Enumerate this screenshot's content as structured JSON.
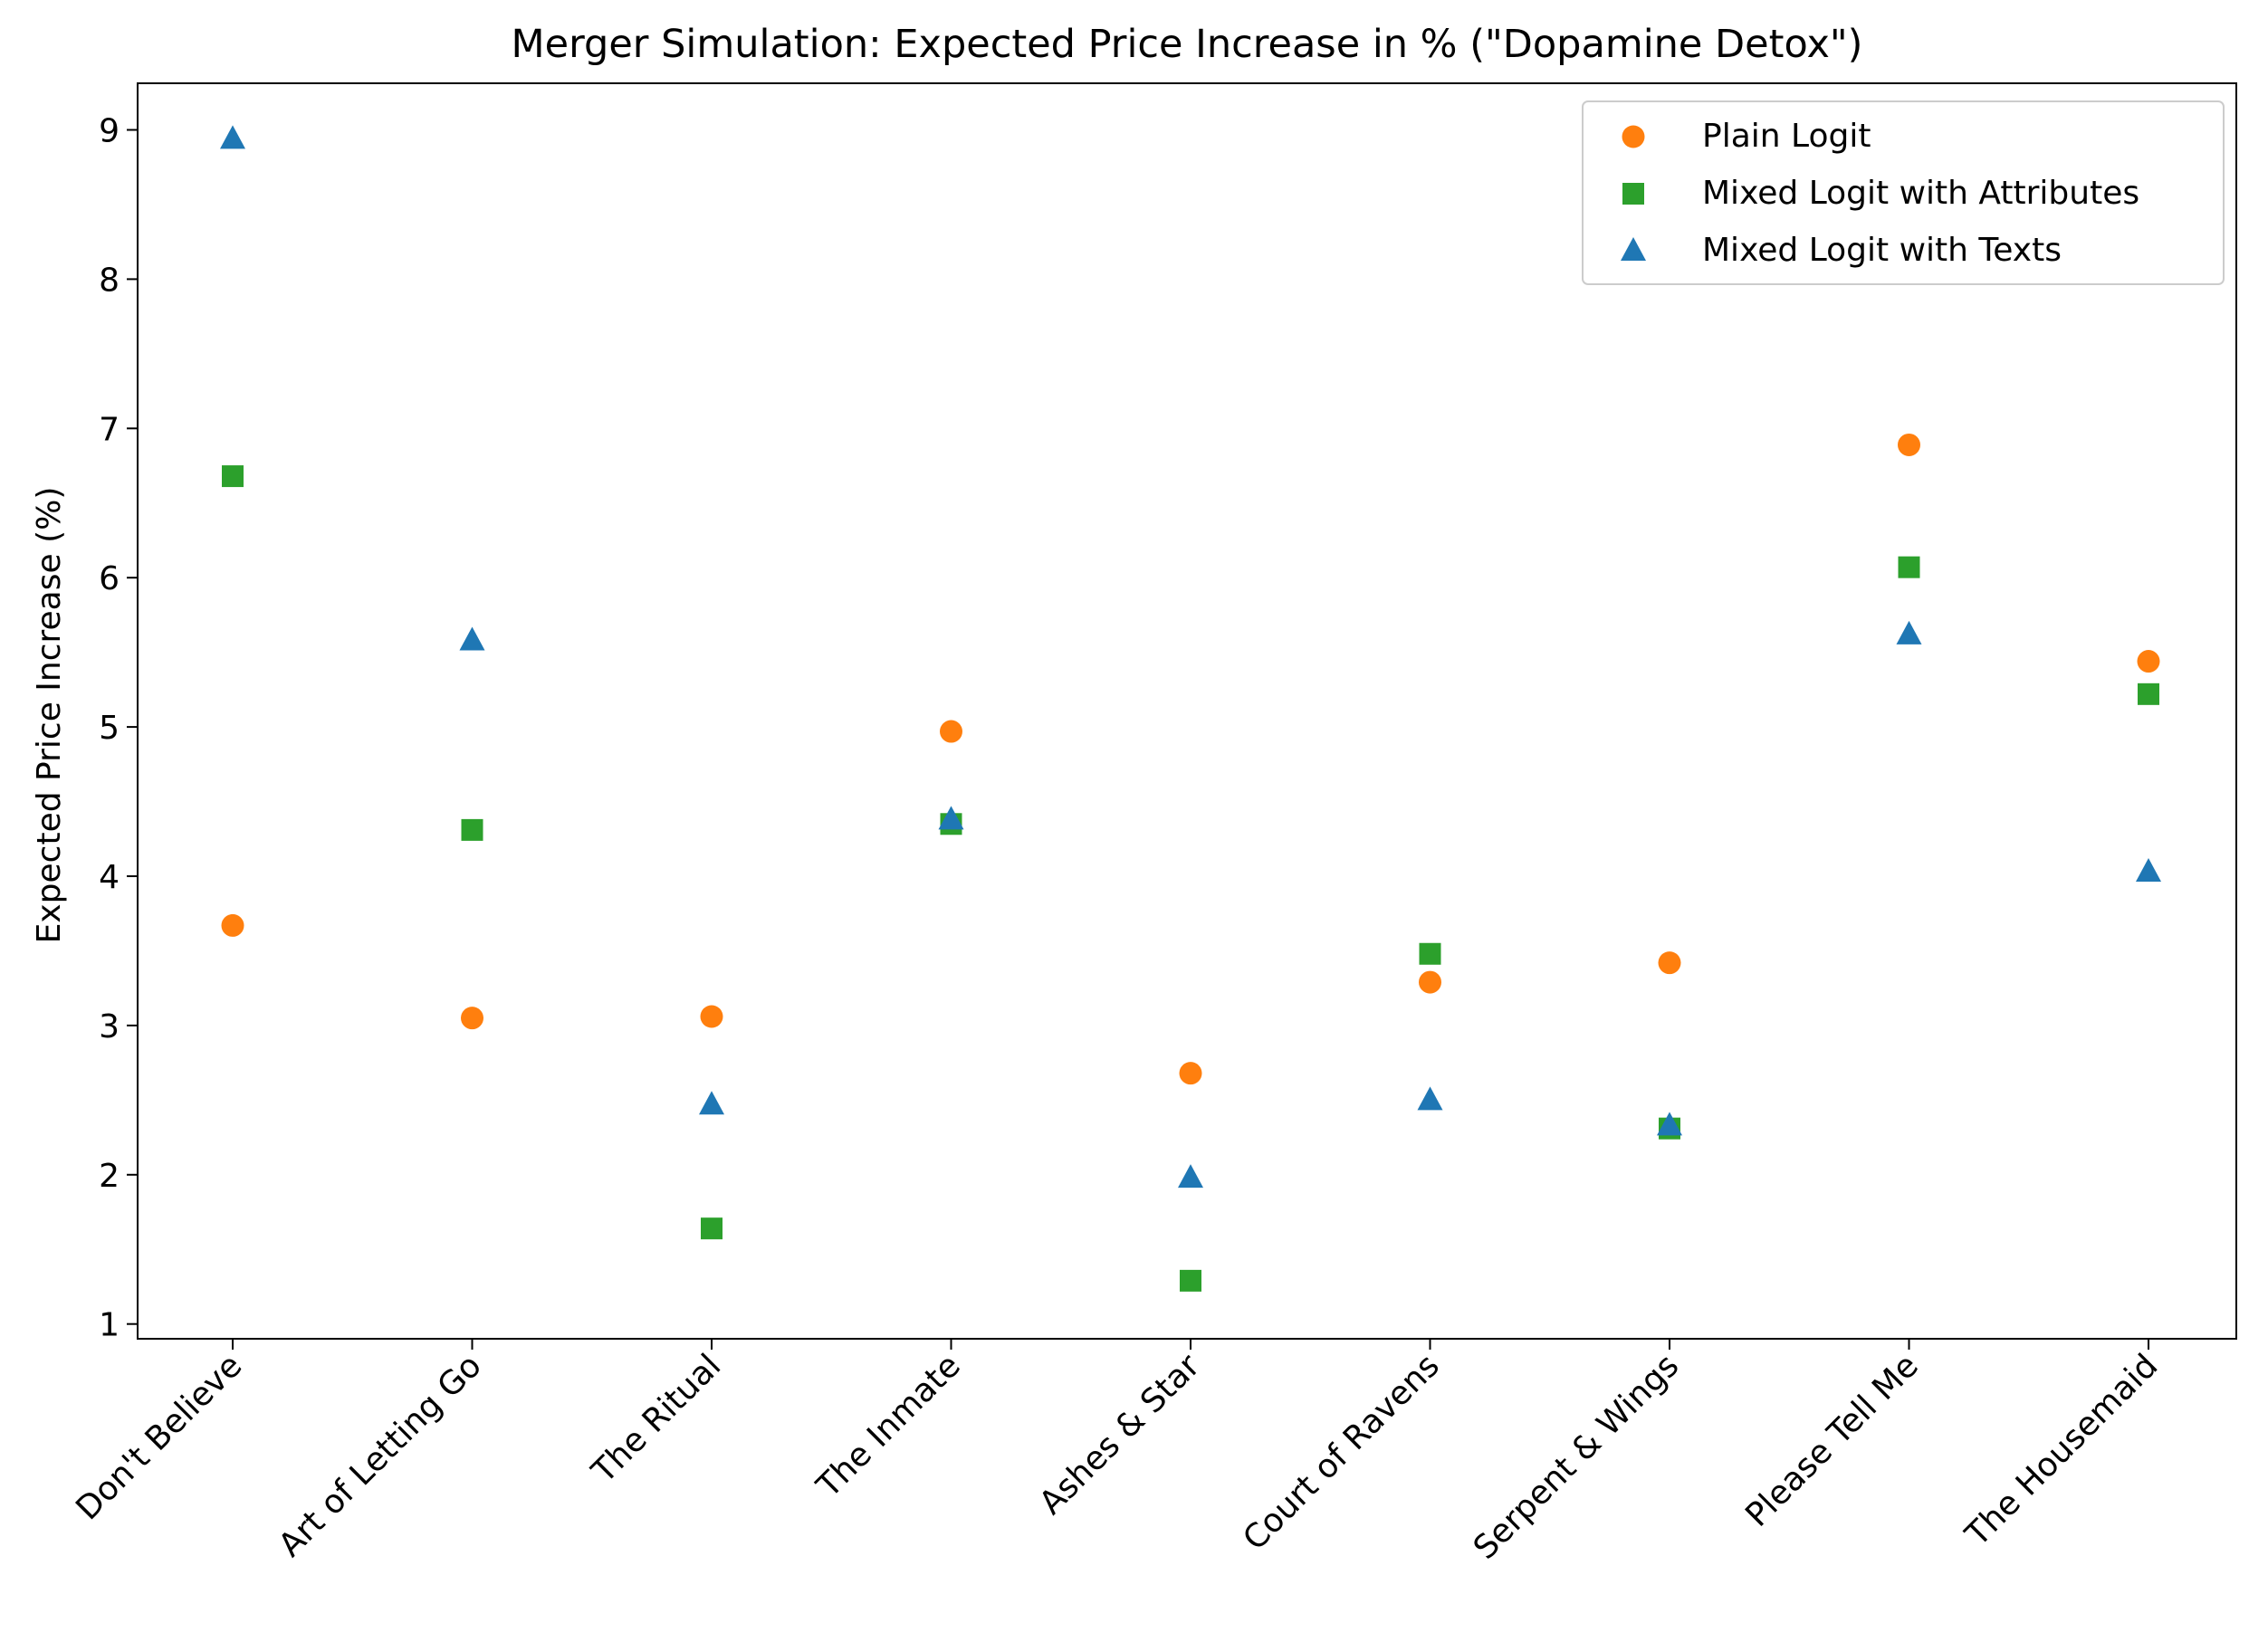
{
  "chart_data": {
    "type": "scatter",
    "title": "Merger Simulation: Expected Price Increase in % (\"Dopamine Detox\")",
    "xlabel": "",
    "ylabel": "Expected Price Increase (%)",
    "categories": [
      "Don't Believe",
      "Art of Letting Go",
      "The Ritual",
      "The Inmate",
      "Ashes & Star",
      "Court of Ravens",
      "Serpent & Wings",
      "Please Tell Me",
      "The Housemaid"
    ],
    "ylim": [
      0.9,
      9.3
    ],
    "yticks": [
      1,
      2,
      3,
      4,
      5,
      6,
      7,
      8,
      9
    ],
    "grid": false,
    "legend_position": "top-right",
    "series": [
      {
        "name": "Plain Logit",
        "marker": "circle",
        "color": "#ff7f0e",
        "values": [
          3.67,
          3.05,
          3.06,
          4.97,
          2.68,
          3.29,
          3.42,
          6.89,
          5.44
        ]
      },
      {
        "name": "Mixed Logit with Attributes",
        "marker": "square",
        "color": "#2ca02c",
        "values": [
          6.68,
          4.31,
          1.64,
          4.35,
          1.29,
          3.48,
          2.31,
          6.07,
          5.22
        ]
      },
      {
        "name": "Mixed Logit with Texts",
        "marker": "triangle",
        "color": "#1f77b4",
        "values": [
          8.94,
          5.58,
          2.47,
          4.38,
          1.98,
          2.5,
          2.33,
          5.62,
          4.03
        ]
      }
    ]
  }
}
